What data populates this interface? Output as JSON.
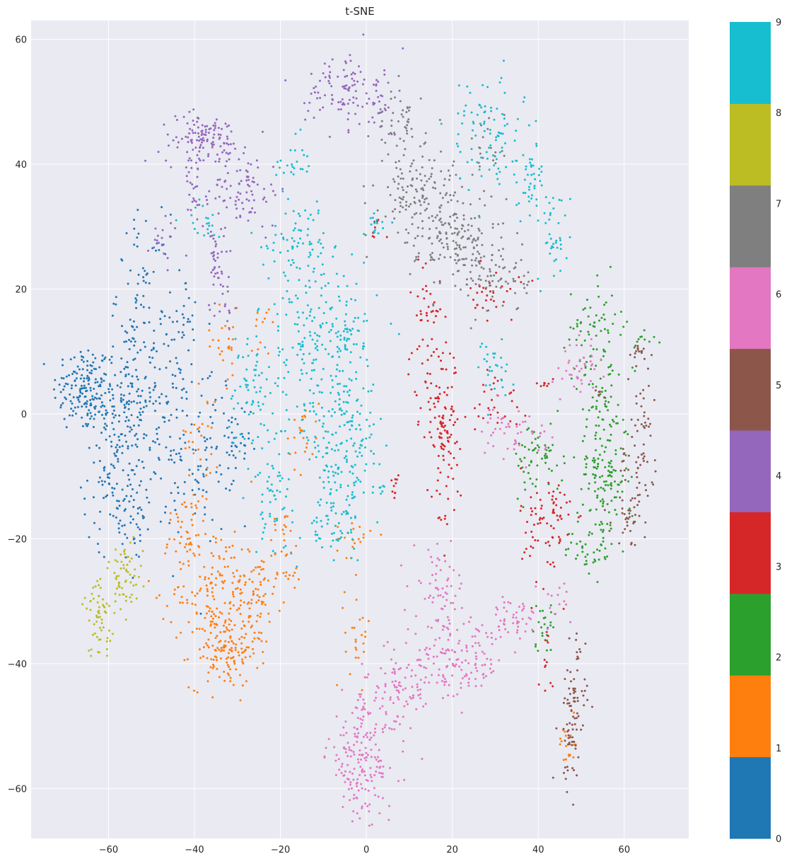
{
  "chart_data": {
    "type": "scatter",
    "title": "t-SNE",
    "xlabel": "",
    "ylabel": "",
    "xlim": [
      -78,
      75
    ],
    "ylim": [
      -68,
      63
    ],
    "x_ticks": [
      -60,
      -40,
      -20,
      0,
      20,
      40,
      60
    ],
    "y_ticks": [
      -60,
      -40,
      -20,
      0,
      20,
      40,
      60
    ],
    "grid": true,
    "style": "seaborn-darkgrid",
    "colormap": "tab10",
    "colorbar": {
      "ticks": [
        0,
        1,
        2,
        3,
        4,
        5,
        6,
        7,
        8,
        9
      ],
      "colors": [
        "#1f77b4",
        "#ff7f0e",
        "#2ca02c",
        "#d62728",
        "#9467bd",
        "#8c564b",
        "#e377c2",
        "#7f7f7f",
        "#bcbd22",
        "#17becf"
      ]
    },
    "series": [
      {
        "label": 0,
        "color": "#1f77b4",
        "clusters": [
          {
            "x": -66,
            "y": 4,
            "sx": 3.5,
            "sy": 3.5,
            "n": 140
          },
          {
            "x": -56,
            "y": 3,
            "sx": 4,
            "sy": 6,
            "n": 160
          },
          {
            "x": -58,
            "y": -9,
            "sx": 4,
            "sy": 6,
            "n": 120
          },
          {
            "x": -52,
            "y": 20,
            "sx": 3,
            "sy": 6,
            "n": 60
          },
          {
            "x": -45,
            "y": -4,
            "sx": 3,
            "sy": 8,
            "n": 80
          },
          {
            "x": -44,
            "y": 15,
            "sx": 2.5,
            "sy": 4,
            "n": 40
          },
          {
            "x": -37,
            "y": -5,
            "sx": 3,
            "sy": 7,
            "n": 60
          },
          {
            "x": -31,
            "y": -6,
            "sx": 2,
            "sy": 4,
            "n": 40
          },
          {
            "x": -55,
            "y": -18,
            "sx": 3,
            "sy": 3,
            "n": 30
          }
        ]
      },
      {
        "label": 1,
        "color": "#ff7f0e",
        "clusters": [
          {
            "x": -33,
            "y": -38,
            "sx": 4,
            "sy": 3,
            "n": 130
          },
          {
            "x": -35,
            "y": -28,
            "sx": 5,
            "sy": 5,
            "n": 150
          },
          {
            "x": -26,
            "y": -30,
            "sx": 2.5,
            "sy": 4,
            "n": 60
          },
          {
            "x": -19,
            "y": -23,
            "sx": 2,
            "sy": 4,
            "n": 40
          },
          {
            "x": -42,
            "y": -18,
            "sx": 2.5,
            "sy": 3,
            "n": 40
          },
          {
            "x": -38,
            "y": -3,
            "sx": 2,
            "sy": 5,
            "n": 30
          },
          {
            "x": -33,
            "y": 11,
            "sx": 2,
            "sy": 3,
            "n": 25
          },
          {
            "x": -15,
            "y": -3,
            "sx": 2,
            "sy": 3,
            "n": 25
          },
          {
            "x": -3,
            "y": -20,
            "sx": 2,
            "sy": 1.5,
            "n": 20
          },
          {
            "x": -2,
            "y": -35,
            "sx": 1.5,
            "sy": 4,
            "n": 25
          },
          {
            "x": 47,
            "y": -53,
            "sx": 1.2,
            "sy": 2,
            "n": 18
          },
          {
            "x": -24,
            "y": 15,
            "sx": 1.5,
            "sy": 2,
            "n": 12
          }
        ]
      },
      {
        "label": 2,
        "color": "#2ca02c",
        "clusters": [
          {
            "x": 55,
            "y": -10,
            "sx": 3,
            "sy": 5,
            "n": 130
          },
          {
            "x": 55,
            "y": 5,
            "sx": 3,
            "sy": 7,
            "n": 80
          },
          {
            "x": 52,
            "y": 15,
            "sx": 3,
            "sy": 3,
            "n": 40
          },
          {
            "x": 40,
            "y": -7,
            "sx": 3,
            "sy": 3,
            "n": 60
          },
          {
            "x": 52,
            "y": -22,
            "sx": 3,
            "sy": 2,
            "n": 40
          },
          {
            "x": 41,
            "y": -34,
            "sx": 1.5,
            "sy": 2,
            "n": 25
          },
          {
            "x": 65,
            "y": 12,
            "sx": 1.5,
            "sy": 0.8,
            "n": 10
          }
        ]
      },
      {
        "label": 3,
        "color": "#d62728",
        "clusters": [
          {
            "x": 18,
            "y": -3,
            "sx": 1.5,
            "sy": 3,
            "n": 60
          },
          {
            "x": 16,
            "y": 5,
            "sx": 3,
            "sy": 4,
            "n": 60
          },
          {
            "x": 14,
            "y": 18,
            "sx": 2,
            "sy": 4,
            "n": 30
          },
          {
            "x": 42,
            "y": -18,
            "sx": 3,
            "sy": 5,
            "n": 80
          },
          {
            "x": 30,
            "y": 19,
            "sx": 3,
            "sy": 2,
            "n": 30
          },
          {
            "x": 30,
            "y": 2,
            "sx": 3,
            "sy": 3,
            "n": 30
          },
          {
            "x": 18,
            "y": -14,
            "sx": 2,
            "sy": 3,
            "n": 20
          },
          {
            "x": 7,
            "y": -11,
            "sx": 0.6,
            "sy": 1,
            "n": 10
          },
          {
            "x": 42,
            "y": -40,
            "sx": 1,
            "sy": 3,
            "n": 12
          },
          {
            "x": 41,
            "y": 5,
            "sx": 1,
            "sy": 0.5,
            "n": 8
          },
          {
            "x": 3,
            "y": 30,
            "sx": 1,
            "sy": 1,
            "n": 8
          }
        ]
      },
      {
        "label": 4,
        "color": "#9467bd",
        "clusters": [
          {
            "x": -38,
            "y": 44,
            "sx": 5,
            "sy": 2,
            "n": 120
          },
          {
            "x": -28,
            "y": 36,
            "sx": 4,
            "sy": 3,
            "n": 80
          },
          {
            "x": -6,
            "y": 52,
            "sx": 4,
            "sy": 3,
            "n": 90
          },
          {
            "x": -40,
            "y": 36,
            "sx": 1.5,
            "sy": 3,
            "n": 30
          },
          {
            "x": -35,
            "y": 24,
            "sx": 2,
            "sy": 4,
            "n": 40
          },
          {
            "x": 3,
            "y": 50,
            "sx": 2,
            "sy": 3,
            "n": 30
          },
          {
            "x": -47,
            "y": 28,
            "sx": 2,
            "sy": 2,
            "n": 20
          },
          {
            "x": -32,
            "y": 17,
            "sx": 1.5,
            "sy": 2,
            "n": 15
          }
        ]
      },
      {
        "label": 5,
        "color": "#8c564b",
        "clusters": [
          {
            "x": 48,
            "y": -48,
            "sx": 1.5,
            "sy": 6,
            "n": 90
          },
          {
            "x": 64,
            "y": -5,
            "sx": 1.5,
            "sy": 6,
            "n": 60
          },
          {
            "x": 61,
            "y": -17,
            "sx": 2,
            "sy": 2,
            "n": 30
          },
          {
            "x": 63,
            "y": 10,
            "sx": 1.5,
            "sy": 1,
            "n": 15
          },
          {
            "x": 60,
            "y": -8,
            "sx": 1,
            "sy": 2,
            "n": 10
          },
          {
            "x": 54,
            "y": 3,
            "sx": 0.8,
            "sy": 0.6,
            "n": 6
          }
        ]
      },
      {
        "label": 6,
        "color": "#e377c2",
        "clusters": [
          {
            "x": -1,
            "y": -55,
            "sx": 4,
            "sy": 5,
            "n": 200
          },
          {
            "x": 8,
            "y": -45,
            "sx": 3,
            "sy": 3,
            "n": 60
          },
          {
            "x": 20,
            "y": -40,
            "sx": 6,
            "sy": 3,
            "n": 150
          },
          {
            "x": 17,
            "y": -28,
            "sx": 3,
            "sy": 3,
            "n": 60
          },
          {
            "x": 33,
            "y": -33,
            "sx": 4,
            "sy": 2,
            "n": 50
          },
          {
            "x": 50,
            "y": 7,
            "sx": 2,
            "sy": 2,
            "n": 40
          },
          {
            "x": 34,
            "y": -3,
            "sx": 4,
            "sy": 2,
            "n": 50
          },
          {
            "x": 44,
            "y": -30,
            "sx": 2,
            "sy": 2,
            "n": 15
          }
        ]
      },
      {
        "label": 7,
        "color": "#7f7f7f",
        "clusters": [
          {
            "x": 12,
            "y": 35,
            "sx": 5,
            "sy": 4,
            "n": 140
          },
          {
            "x": 22,
            "y": 28,
            "sx": 5,
            "sy": 4,
            "n": 150
          },
          {
            "x": 30,
            "y": 22,
            "sx": 4,
            "sy": 3,
            "n": 70
          },
          {
            "x": 8,
            "y": 46,
            "sx": 3,
            "sy": 3,
            "n": 50
          },
          {
            "x": 28,
            "y": 43,
            "sx": 2,
            "sy": 3,
            "n": 20
          }
        ]
      },
      {
        "label": 8,
        "color": "#bcbd22",
        "clusters": [
          {
            "x": -62,
            "y": -33,
            "sx": 2,
            "sy": 3,
            "n": 60
          },
          {
            "x": -56,
            "y": -26,
            "sx": 2,
            "sy": 3,
            "n": 60
          }
        ]
      },
      {
        "label": 9,
        "color": "#17becf",
        "clusters": [
          {
            "x": -12,
            "y": 10,
            "sx": 6,
            "sy": 8,
            "n": 220
          },
          {
            "x": -5,
            "y": -8,
            "sx": 4,
            "sy": 6,
            "n": 140
          },
          {
            "x": -22,
            "y": -12,
            "sx": 2.5,
            "sy": 5,
            "n": 60
          },
          {
            "x": -27,
            "y": 4,
            "sx": 2.5,
            "sy": 5,
            "n": 60
          },
          {
            "x": -15,
            "y": 28,
            "sx": 4,
            "sy": 3,
            "n": 60
          },
          {
            "x": -4,
            "y": 10,
            "sx": 3,
            "sy": 6,
            "n": 60
          },
          {
            "x": -8,
            "y": -18,
            "sx": 3,
            "sy": 2,
            "n": 40
          },
          {
            "x": 28,
            "y": 45,
            "sx": 4,
            "sy": 5,
            "n": 90
          },
          {
            "x": 38,
            "y": 37,
            "sx": 2,
            "sy": 3,
            "n": 40
          },
          {
            "x": 44,
            "y": 29,
            "sx": 2,
            "sy": 4,
            "n": 40
          },
          {
            "x": 30,
            "y": 7,
            "sx": 2,
            "sy": 3,
            "n": 30
          },
          {
            "x": -18,
            "y": 40,
            "sx": 2,
            "sy": 2,
            "n": 25
          },
          {
            "x": -38,
            "y": 31,
            "sx": 2,
            "sy": 1.5,
            "n": 20
          },
          {
            "x": 2,
            "y": 30,
            "sx": 2,
            "sy": 1.5,
            "n": 15
          },
          {
            "x": 3,
            "y": -12,
            "sx": 0.8,
            "sy": 0.5,
            "n": 8
          }
        ]
      }
    ]
  }
}
